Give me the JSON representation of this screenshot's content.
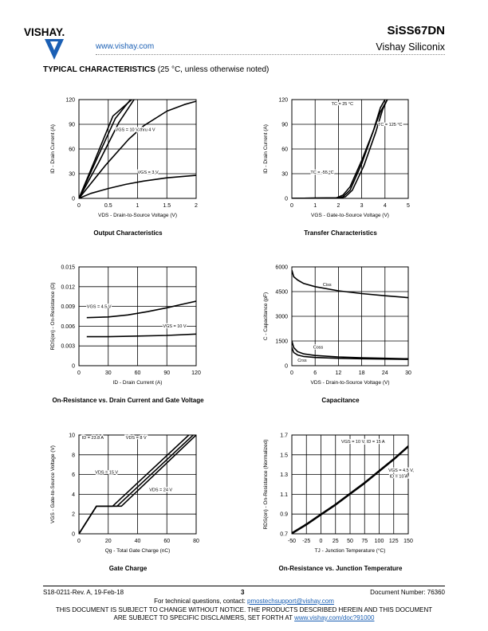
{
  "header": {
    "logo_text": "VISHAY.",
    "website": "www.vishay.com",
    "part_number": "SiSS67DN",
    "company": "Vishay Siliconix"
  },
  "section": {
    "title": "TYPICAL CHARACTERISTICS",
    "subtitle": "(25 °C, unless otherwise noted)"
  },
  "chart_data": [
    {
      "type": "line",
      "title": "Output Characteristics",
      "xlabel": "VDS - Drain-to-Source Voltage (V)",
      "ylabel": "ID - Drain Current (A)",
      "xlim": [
        0,
        2
      ],
      "ylim": [
        0,
        120
      ],
      "xticks": [
        "0",
        "0.5",
        "1",
        "1.5",
        "2"
      ],
      "yticks": [
        "0",
        "30",
        "60",
        "90",
        "120"
      ],
      "grid": true,
      "annotations": [
        {
          "text": "VGS = 10 V thru 4 V",
          "x": 0.62,
          "y": 82
        },
        {
          "text": "VGS = 3 V",
          "x": 1.0,
          "y": 30
        }
      ],
      "series": [
        {
          "x": [
            0,
            0.28,
            0.58,
            0.9
          ],
          "y": [
            0,
            48,
            100,
            120
          ]
        },
        {
          "x": [
            0,
            0.3,
            0.62,
            0.88
          ],
          "y": [
            0,
            47,
            97,
            120
          ]
        },
        {
          "x": [
            0,
            0.34,
            0.68,
            0.94
          ],
          "y": [
            0,
            44,
            92,
            120
          ]
        },
        {
          "x": [
            0,
            0.45,
            0.85,
            1.1,
            1.5,
            1.8,
            2.0
          ],
          "y": [
            0,
            40,
            72,
            88,
            106,
            114,
            118
          ]
        },
        {
          "x": [
            0,
            0.2,
            0.5,
            0.8,
            1.1,
            1.5,
            2.0
          ],
          "y": [
            0,
            6,
            12,
            17,
            21,
            25,
            28
          ]
        }
      ]
    },
    {
      "type": "line",
      "title": "Transfer Characteristics",
      "xlabel": "VGS - Gate-to-Source Voltage (V)",
      "ylabel": "ID - Drain Current (A)",
      "xlim": [
        0,
        5
      ],
      "ylim": [
        0,
        120
      ],
      "xticks": [
        "0",
        "1",
        "2",
        "3",
        "4",
        "5"
      ],
      "yticks": [
        "0",
        "30",
        "60",
        "90",
        "120"
      ],
      "grid": true,
      "annotations": [
        {
          "text": "TC = 25 °C",
          "x": 1.7,
          "y": 113
        },
        {
          "text": "TC = 125 °C",
          "x": 3.7,
          "y": 88
        },
        {
          "text": "TC = -55 °C",
          "x": 0.8,
          "y": 30
        }
      ],
      "series": [
        {
          "name": "TC = 25 °C",
          "x": [
            0,
            1.5,
            2.0,
            2.2,
            2.5,
            3.0,
            3.5,
            3.8,
            4.0
          ],
          "y": [
            0,
            0.5,
            0.5,
            2,
            10,
            42,
            82,
            110,
            120
          ]
        },
        {
          "name": "TC = 125 °C",
          "x": [
            0,
            1.5,
            1.9,
            2.2,
            2.5,
            3.0,
            3.5,
            3.8,
            4.1
          ],
          "y": [
            0,
            0.5,
            0.5,
            4,
            14,
            46,
            82,
            105,
            120
          ]
        },
        {
          "name": "TC = -55 °C",
          "x": [
            0,
            1.5,
            2.1,
            2.3,
            2.6,
            3.1,
            3.6,
            3.9,
            4.1
          ],
          "y": [
            0,
            0.5,
            0.5,
            2,
            10,
            40,
            80,
            108,
            120
          ]
        }
      ]
    },
    {
      "type": "line",
      "title": "On-Resistance vs. Drain Current and Gate Voltage",
      "xlabel": "ID - Drain Current (A)",
      "ylabel": "RDS(on) - On-Resistance (Ω)",
      "xlim": [
        0,
        120
      ],
      "ylim": [
        0,
        0.015
      ],
      "xticks": [
        "0",
        "30",
        "60",
        "90",
        "120"
      ],
      "yticks": [
        "0",
        "0.003",
        "0.006",
        "0.009",
        "0.012",
        "0.015"
      ],
      "grid": true,
      "annotations": [
        {
          "text": "VGS = 4.5 V",
          "x": 8,
          "y": 0.0088
        },
        {
          "text": "VGS = 10 V",
          "x": 86,
          "y": 0.0058
        }
      ],
      "series": [
        {
          "name": "VGS = 4.5 V",
          "x": [
            8,
            30,
            50,
            70,
            90,
            105,
            120
          ],
          "y": [
            0.0073,
            0.0074,
            0.0077,
            0.0082,
            0.0088,
            0.0093,
            0.0098
          ]
        },
        {
          "name": "VGS = 10 V",
          "x": [
            8,
            30,
            60,
            90,
            120
          ],
          "y": [
            0.0044,
            0.0044,
            0.0045,
            0.0046,
            0.0048
          ]
        }
      ]
    },
    {
      "type": "line",
      "title": "Capacitance",
      "xlabel": "VDS - Drain-to-Source Voltage (V)",
      "ylabel": "C - Capacitance (pF)",
      "xlim": [
        0,
        30
      ],
      "ylim": [
        0,
        6000
      ],
      "xticks": [
        "0",
        "6",
        "12",
        "18",
        "24",
        "30"
      ],
      "yticks": [
        "0",
        "1500",
        "3000",
        "4500",
        "6000"
      ],
      "grid": true,
      "annotations": [
        {
          "text": "Ciss",
          "x": 8,
          "y": 4850
        },
        {
          "text": "Coss",
          "x": 5.5,
          "y": 1050
        },
        {
          "text": "Crss",
          "x": 1.5,
          "y": 250
        }
      ],
      "series": [
        {
          "name": "Ciss",
          "x": [
            0,
            0.5,
            1.5,
            3,
            6,
            12,
            18,
            24,
            30
          ],
          "y": [
            5800,
            5400,
            5200,
            5000,
            4800,
            4550,
            4380,
            4250,
            4130
          ]
        },
        {
          "name": "Coss",
          "x": [
            0,
            0.5,
            1.5,
            3,
            6,
            12,
            18,
            24,
            30
          ],
          "y": [
            1500,
            1100,
            850,
            720,
            620,
            530,
            480,
            450,
            420
          ]
        },
        {
          "name": "Crss",
          "x": [
            0,
            0.5,
            1.5,
            3,
            6,
            12,
            18,
            24,
            30
          ],
          "y": [
            1100,
            800,
            650,
            560,
            500,
            450,
            420,
            400,
            380
          ]
        }
      ]
    },
    {
      "type": "line",
      "title": "Gate Charge",
      "xlabel": "Qg - Total Gate Charge (nC)",
      "ylabel": "VGS - Gate-to-Source Voltage (V)",
      "xlim": [
        0,
        80
      ],
      "ylim": [
        0,
        10
      ],
      "xticks": [
        "0",
        "20",
        "40",
        "60",
        "80"
      ],
      "yticks": [
        "0",
        "2",
        "4",
        "6",
        "8",
        "10"
      ],
      "grid": true,
      "annotations": [
        {
          "text": "ID = 23.8 A",
          "x": 2,
          "y": 9.6
        },
        {
          "text": "VDS = 8 V",
          "x": 32,
          "y": 9.6
        },
        {
          "text": "VDS = 15 V",
          "x": 11,
          "y": 6.1
        },
        {
          "text": "VDS = 24 V",
          "x": 48,
          "y": 4.3
        }
      ],
      "series": [
        {
          "name": "VDS = 8 V",
          "x": [
            0,
            12,
            23,
            75
          ],
          "y": [
            0,
            2.8,
            2.8,
            10
          ]
        },
        {
          "name": "VDS = 15 V",
          "x": [
            0,
            12,
            26,
            78
          ],
          "y": [
            0,
            2.8,
            2.8,
            10
          ]
        },
        {
          "name": "VDS = 24 V",
          "x": [
            0,
            12,
            29,
            80
          ],
          "y": [
            0,
            2.8,
            2.8,
            10
          ]
        }
      ]
    },
    {
      "type": "line",
      "title": "On-Resistance vs. Junction Temperature",
      "xlabel": "TJ - Junction Temperature (°C)",
      "ylabel": "RDS(on) - On-Resistance (Normalized)",
      "xlim": [
        -50,
        150
      ],
      "ylim": [
        0.7,
        1.7
      ],
      "xticks": [
        "-50",
        "-25",
        "0",
        "25",
        "50",
        "75",
        "100",
        "125",
        "150"
      ],
      "yticks": [
        "0.7",
        "0.9",
        "1.1",
        "1.3",
        "1.5",
        "1.7"
      ],
      "grid": true,
      "annotations": [
        {
          "text": "VGS = 10 V, ID = 15 A",
          "x": 35,
          "y": 1.62
        },
        {
          "text": "VGS = 4.5 V,",
          "x": 116,
          "y": 1.33
        },
        {
          "text": "ID = 10 A",
          "x": 118,
          "y": 1.27
        }
      ],
      "series": [
        {
          "x": [
            -50,
            -25,
            0,
            25,
            50,
            75,
            100,
            125,
            150
          ],
          "y": [
            0.7,
            0.79,
            0.89,
            0.99,
            1.1,
            1.21,
            1.33,
            1.45,
            1.58
          ]
        },
        {
          "x": [
            -50,
            -25,
            0,
            25,
            50,
            75,
            100,
            125,
            150
          ],
          "y": [
            0.71,
            0.8,
            0.9,
            1.0,
            1.11,
            1.22,
            1.34,
            1.46,
            1.59
          ]
        }
      ]
    }
  ],
  "footer": {
    "revision": "S18-0211-Rev. A, 19-Feb-18",
    "page": "3",
    "document_number": "Document Number: 76360",
    "contact_prefix": "For technical questions, contact: ",
    "contact_email": "pmostechsupport@vishay.com",
    "disclaimer_line1": "THIS DOCUMENT IS SUBJECT TO CHANGE WITHOUT NOTICE. THE PRODUCTS DESCRIBED HEREIN AND THIS DOCUMENT",
    "disclaimer_line2_prefix": "ARE SUBJECT TO SPECIFIC DISCLAIMERS, SET FORTH AT ",
    "disclaimer_link": "www.vishay.com/doc?91000"
  }
}
